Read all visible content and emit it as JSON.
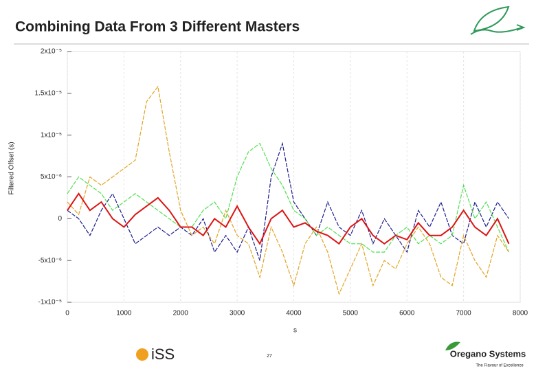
{
  "chart_data": {
    "type": "line",
    "title": "Combining Data From 3 Different Masters",
    "xlabel": "s",
    "ylabel": "Filtered Offset (s)",
    "x": [
      0,
      200,
      400,
      600,
      800,
      1000,
      1200,
      1400,
      1600,
      1800,
      2000,
      2200,
      2400,
      2600,
      2800,
      3000,
      3200,
      3400,
      3600,
      3800,
      4000,
      4200,
      4400,
      4600,
      4800,
      5000,
      5200,
      5400,
      5600,
      5800,
      6000,
      6200,
      6400,
      6600,
      6800,
      7000,
      7200,
      7400,
      7600,
      7800
    ],
    "series": [
      {
        "color": "#1c1c8e",
        "values": [
          1e-06,
          0,
          -2e-06,
          1e-06,
          3e-06,
          0,
          -3e-06,
          -2e-06,
          -1e-06,
          -2e-06,
          -1e-06,
          -2e-06,
          0,
          -4e-06,
          -2e-06,
          -4e-06,
          -1e-06,
          -5e-06,
          5e-06,
          9e-06,
          2e-06,
          0,
          -2e-06,
          2e-06,
          -1e-06,
          -2e-06,
          1e-06,
          -3e-06,
          0,
          -2e-06,
          -4e-06,
          1e-06,
          -1e-06,
          2e-06,
          -2e-06,
          -3e-06,
          2e-06,
          -1e-06,
          2e-06,
          0
        ]
      },
      {
        "color": "#4ee04e",
        "values": [
          3e-06,
          5e-06,
          4e-06,
          3e-06,
          1e-06,
          2e-06,
          3e-06,
          2e-06,
          1e-06,
          0,
          -1e-06,
          -1e-06,
          1e-06,
          2e-06,
          0,
          5e-06,
          8e-06,
          9e-06,
          6e-06,
          4e-06,
          1e-06,
          0,
          -2e-06,
          -1e-06,
          -2e-06,
          -3e-06,
          -3e-06,
          -4e-06,
          -4e-06,
          -2e-06,
          -1e-06,
          -3e-06,
          -2e-06,
          -3e-06,
          -2e-06,
          4e-06,
          0,
          2e-06,
          -1e-06,
          -4e-06
        ]
      },
      {
        "color": "#e2a422",
        "values": [
          2e-06,
          5e-07,
          5e-06,
          4e-06,
          5e-06,
          6e-06,
          7e-06,
          1.4e-05,
          1.58e-05,
          8e-06,
          1e-06,
          -2e-06,
          -1e-06,
          -3e-06,
          1e-06,
          -2e-06,
          -3e-06,
          -7e-06,
          -1e-06,
          -4e-06,
          -8e-06,
          -3e-06,
          -1e-06,
          -4e-06,
          -9e-06,
          -6e-06,
          -3e-06,
          -8e-06,
          -5e-06,
          -6e-06,
          -3e-06,
          -1e-06,
          -3e-06,
          -7e-06,
          -8e-06,
          -2e-06,
          -5e-06,
          -7e-06,
          -2e-06,
          -4e-06
        ]
      },
      {
        "color": "#dc1414",
        "values": [
          1e-06,
          3e-06,
          1e-06,
          2e-06,
          0,
          -1e-06,
          5e-07,
          1.5e-06,
          2.5e-06,
          1e-06,
          -1e-06,
          -1e-06,
          -2e-06,
          0,
          -1e-06,
          1.5e-06,
          -1e-06,
          -3e-06,
          0,
          1e-06,
          -1e-06,
          -5e-07,
          -1.5e-06,
          -2e-06,
          -3e-06,
          -1e-06,
          0,
          -2e-06,
          -3e-06,
          -2e-06,
          -2.5e-06,
          -5e-07,
          -2e-06,
          -2e-06,
          -1e-06,
          1e-06,
          -1e-06,
          -2e-06,
          0,
          -3e-06
        ]
      }
    ],
    "xlim": [
      0,
      8000
    ],
    "xticks": [
      0,
      1000,
      2000,
      3000,
      4000,
      5000,
      6000,
      7000,
      8000
    ],
    "ylim": [
      -1e-05,
      2e-05
    ],
    "yticks": [
      {
        "value": -1e-05,
        "label": "-1x10⁻⁵"
      },
      {
        "value": -5e-06,
        "label": "-5x10⁻⁶"
      },
      0,
      {
        "value": 5e-06,
        "label": "5x10⁻⁶"
      },
      {
        "value": 1e-05,
        "label": "1x10⁻⁵"
      },
      {
        "value": 1.5e-05,
        "label": "1.5x10⁻⁵"
      },
      {
        "value": 2e-05,
        "label": "2x10⁻⁵"
      }
    ],
    "grid": true
  },
  "footer": {
    "page": "27",
    "left_logo": "iSS",
    "company": "Oregano Systems",
    "tagline": "The Flavour of Excellence"
  }
}
